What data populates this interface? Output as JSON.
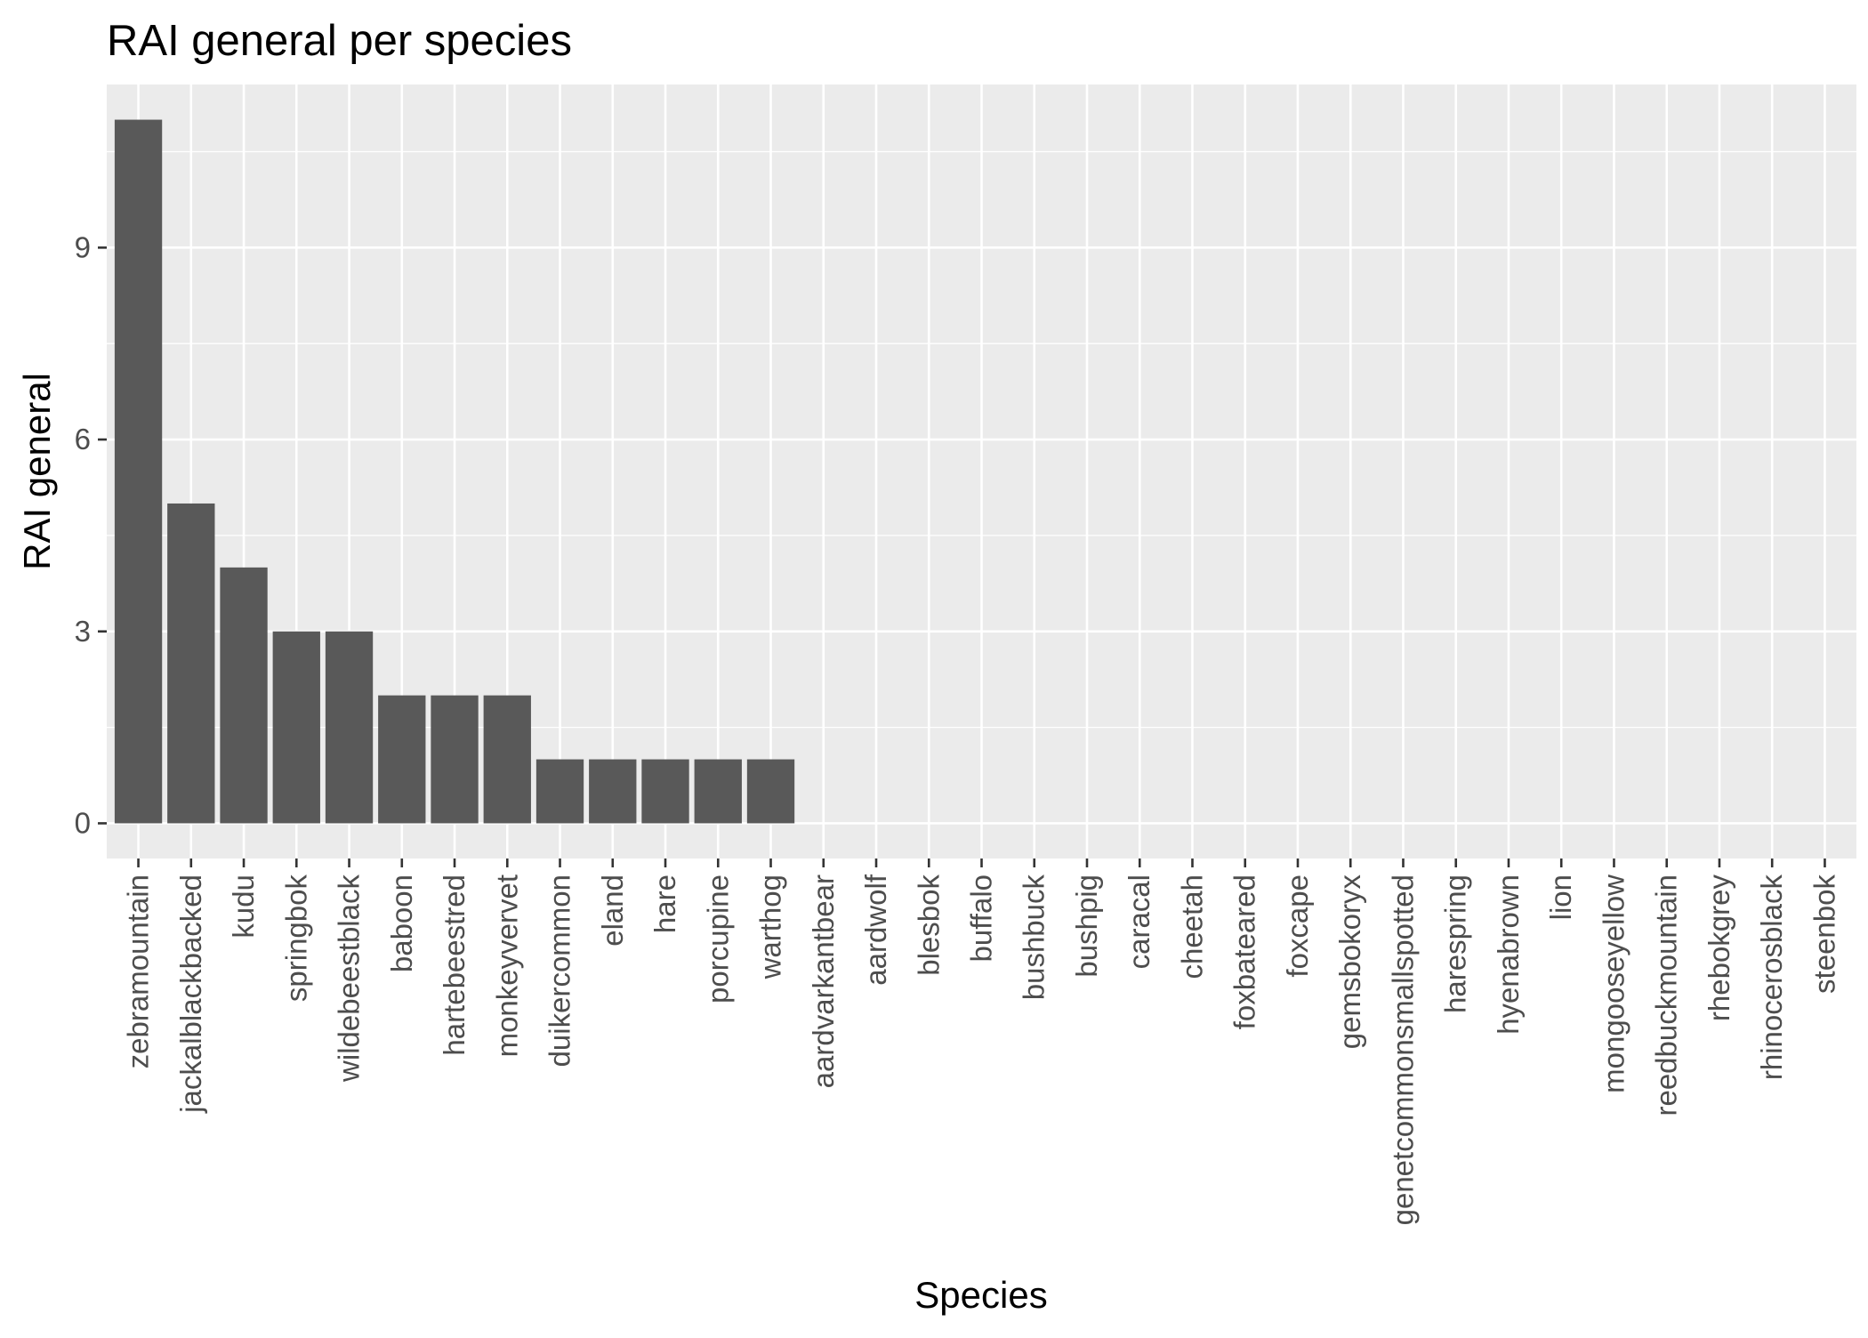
{
  "chart_data": {
    "type": "bar",
    "title": "RAI general per species",
    "xlabel": "Species",
    "ylabel": "RAI general",
    "categories": [
      "zebramountain",
      "jackalblackbacked",
      "kudu",
      "springbok",
      "wildebeestblack",
      "baboon",
      "hartebeestred",
      "monkeyvervet",
      "duikercommon",
      "eland",
      "hare",
      "porcupine",
      "warthog",
      "aardvarkantbear",
      "aardwolf",
      "blesbok",
      "buffalo",
      "bushbuck",
      "bushpig",
      "caracal",
      "cheetah",
      "foxbateared",
      "foxcape",
      "gemsbokoryx",
      "genetcommonsmallspotted",
      "harespring",
      "hyenabrown",
      "lion",
      "mongooseyellow",
      "reedbuckmountain",
      "rhebokgrey",
      "rhinocerosblack",
      "steenbok"
    ],
    "values": [
      11,
      5,
      4,
      3,
      3,
      2,
      2,
      2,
      1,
      1,
      1,
      1,
      1,
      0,
      0,
      0,
      0,
      0,
      0,
      0,
      0,
      0,
      0,
      0,
      0,
      0,
      0,
      0,
      0,
      0,
      0,
      0,
      0
    ],
    "yticks": [
      0,
      3,
      6,
      9
    ],
    "ylim": [
      -0.55,
      11.55
    ],
    "grid": true,
    "colors": {
      "bar": "#595959",
      "panel": "#ebebeb",
      "grid": "#ffffff"
    }
  }
}
